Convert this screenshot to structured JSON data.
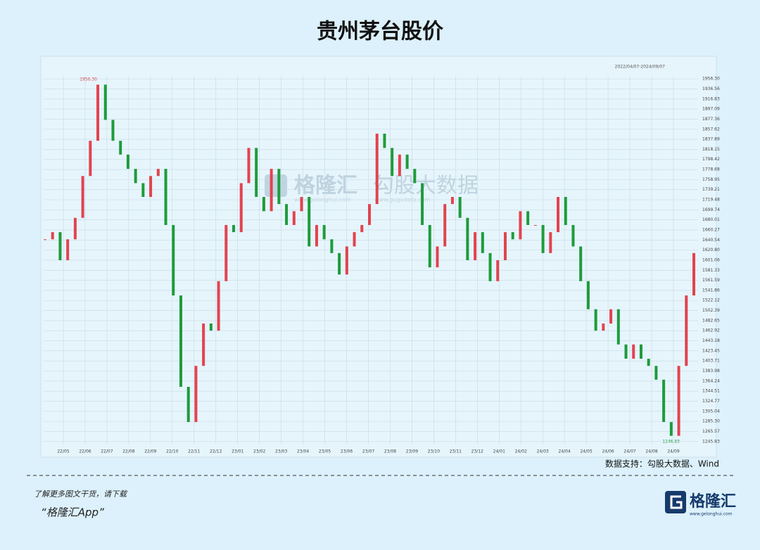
{
  "chart_data": {
    "type": "candlestick",
    "title": "贵州茅台股价",
    "range_label": "2022/04/07-2024/09/07",
    "source": "数据支持：勾股大数据、Wind",
    "high_label": "1956.30",
    "low_label": "1246.83",
    "watermarks": [
      "格隆汇",
      "www.gelonghui.com",
      "勾股大数据",
      "www.gugudata.com"
    ],
    "month_labels": [
      "22/05",
      "22/06",
      "22/07",
      "22/08",
      "22/09",
      "22/10",
      "22/11",
      "22/12",
      "23/01",
      "23/02",
      "23/03",
      "23/04",
      "23/05",
      "23/06",
      "23/07",
      "23/08",
      "23/09",
      "23/10",
      "23/11",
      "23/12",
      "24/01",
      "24/02",
      "24/03",
      "24/04",
      "24/05",
      "24/06",
      "24/07",
      "24/08",
      "24/09"
    ],
    "series": [
      {
        "up_color": "#e2434f",
        "down_color": "#1e9b3c",
        "values": [
          1642,
          1656,
          1601,
          1642,
          1684,
          1766,
          1835,
          1945,
          1876,
          1835,
          1808,
          1780,
          1752,
          1725,
          1766,
          1780,
          1670,
          1532,
          1353,
          1284,
          1394,
          1477,
          1463,
          1560,
          1670,
          1656,
          1752,
          1821,
          1725,
          1697,
          1780,
          1711,
          1670,
          1697,
          1725,
          1628,
          1670,
          1642,
          1615,
          1573,
          1628,
          1656,
          1670,
          1711,
          1849,
          1821,
          1766,
          1808,
          1780,
          1752,
          1670,
          1587,
          1628,
          1711,
          1725,
          1684,
          1601,
          1656,
          1615,
          1560,
          1601,
          1656,
          1642,
          1697,
          1670,
          1670,
          1615,
          1656,
          1725,
          1670,
          1628,
          1560,
          1505,
          1463,
          1477,
          1505,
          1436,
          1408,
          1436,
          1408,
          1394,
          1367,
          1284,
          1257,
          1394,
          1532,
          1615
        ]
      }
    ],
    "ylim": [
      1240,
      1962
    ],
    "yticks": [
      1245.83,
      1265.57,
      {
        "value": 1285.3,
        "label": "1285.30"
      },
      1305.04,
      1324.77,
      1344.51,
      1364.24,
      1383.98,
      1403.71,
      1423.45,
      1443.18,
      1462.92,
      1482.65,
      1502.39,
      1522.12,
      1541.86,
      1561.59,
      1581.33,
      1601.06,
      {
        "value": 1620.8,
        "label": "1620.80"
      },
      1640.54,
      1660.27,
      1680.01,
      1699.74,
      1719.48,
      1739.21,
      1758.95,
      1778.68,
      1798.42,
      1818.15,
      1837.89,
      1857.62,
      1877.36,
      1897.09,
      1916.83,
      1936.56,
      {
        "value": 1956.3,
        "label": "1956.30"
      }
    ],
    "grid": true
  },
  "footer": {
    "prompt": "了解更多图文干货，请下载",
    "app": "“格隆汇App”",
    "brand": "格隆汇",
    "url": "www.gelonghui.com"
  }
}
